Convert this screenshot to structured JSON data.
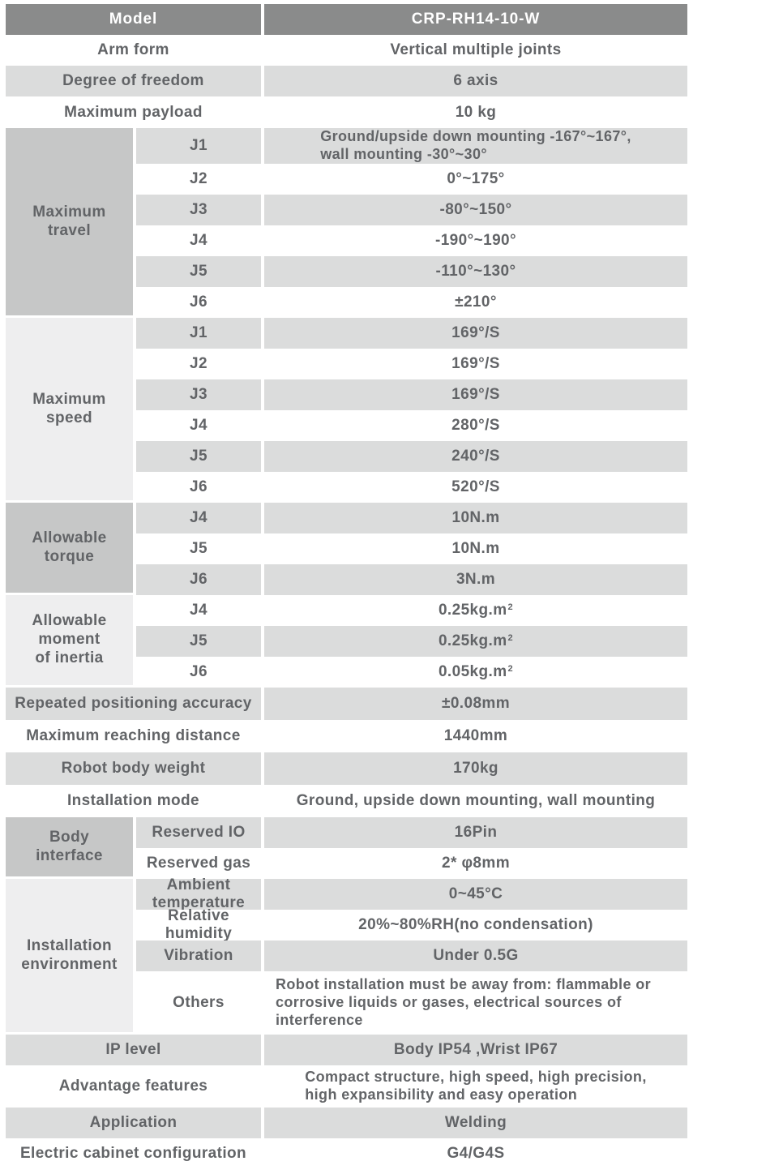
{
  "title": "Robot specification table",
  "colors": {
    "header_bg": "#8a8b8b",
    "header_text": "#ffffff",
    "row_gray": "#dbdcdc",
    "group_medium": "#c6c7c7",
    "group_light": "#eeeeef",
    "text": "#626467"
  },
  "header": {
    "label": "Model",
    "value": "CRP-RH14-10-W"
  },
  "rows_top": [
    {
      "label": "Arm form",
      "value": "Vertical multiple joints"
    },
    {
      "label": "Degree of freedom",
      "value": "6 axis"
    },
    {
      "label": "Maximum payload",
      "value": "10 kg"
    }
  ],
  "groups": [
    {
      "label": "Maximum\ntravel",
      "rows": [
        {
          "sub": "J1",
          "value": "Ground/upside down mounting -167°~167°,\nwall mounting -30°~30°"
        },
        {
          "sub": "J2",
          "value": "0°~175°"
        },
        {
          "sub": "J3",
          "value": "-80°~150°"
        },
        {
          "sub": "J4",
          "value": "-190°~190°"
        },
        {
          "sub": "J5",
          "value": "-110°~130°"
        },
        {
          "sub": "J6",
          "value": "±210°"
        }
      ]
    },
    {
      "label": "Maximum\nspeed",
      "rows": [
        {
          "sub": "J1",
          "value": "169°/S"
        },
        {
          "sub": "J2",
          "value": "169°/S"
        },
        {
          "sub": "J3",
          "value": "169°/S"
        },
        {
          "sub": "J4",
          "value": "280°/S"
        },
        {
          "sub": "J5",
          "value": "240°/S"
        },
        {
          "sub": "J6",
          "value": "520°/S"
        }
      ]
    },
    {
      "label": "Allowable\ntorque",
      "rows": [
        {
          "sub": "J4",
          "value": "10N.m"
        },
        {
          "sub": "J5",
          "value": "10N.m"
        },
        {
          "sub": "J6",
          "value": "3N.m"
        }
      ]
    },
    {
      "label": "Allowable\nmoment\nof inertia",
      "rows": [
        {
          "sub": "J4",
          "value": "0.25kg.m",
          "sup": "2"
        },
        {
          "sub": "J5",
          "value": "0.25kg.m",
          "sup": "2"
        },
        {
          "sub": "J6",
          "value": "0.05kg.m",
          "sup": "2"
        }
      ]
    }
  ],
  "rows_mid": [
    {
      "label": "Repeated positioning accuracy",
      "value": "±0.08mm"
    },
    {
      "label": "Maximum reaching distance",
      "value": "1440mm"
    },
    {
      "label": "Robot body weight",
      "value": "170kg"
    },
    {
      "label": "Installation mode",
      "value": "Ground, upside down mounting, wall mounting"
    }
  ],
  "groups2": [
    {
      "label": "Body\ninterface",
      "rows": [
        {
          "sub": "Reserved IO",
          "value": "16Pin"
        },
        {
          "sub": "Reserved gas",
          "value": "2* φ8mm"
        }
      ]
    },
    {
      "label": "Installation\nenvironment",
      "rows": [
        {
          "sub": "Ambient\ntemperature",
          "value": "0~45°C"
        },
        {
          "sub": "Relative\nhumidity",
          "value": "20%~80%RH(no condensation)"
        },
        {
          "sub": "Vibration",
          "value": "Under 0.5G"
        },
        {
          "sub": "Others",
          "value": "Robot installation must be away from: flammable or corrosive liquids or gases, electrical sources of interference"
        }
      ]
    }
  ],
  "rows_bottom": [
    {
      "label": "IP level",
      "value": "Body IP54 ,Wrist IP67"
    },
    {
      "label": "Advantage features",
      "value": "Compact structure, high speed, high precision,\nhigh expansibility and easy operation"
    },
    {
      "label": "Application",
      "value": "Welding"
    },
    {
      "label": "Electric cabinet configuration",
      "value": "G4/G4S"
    }
  ]
}
